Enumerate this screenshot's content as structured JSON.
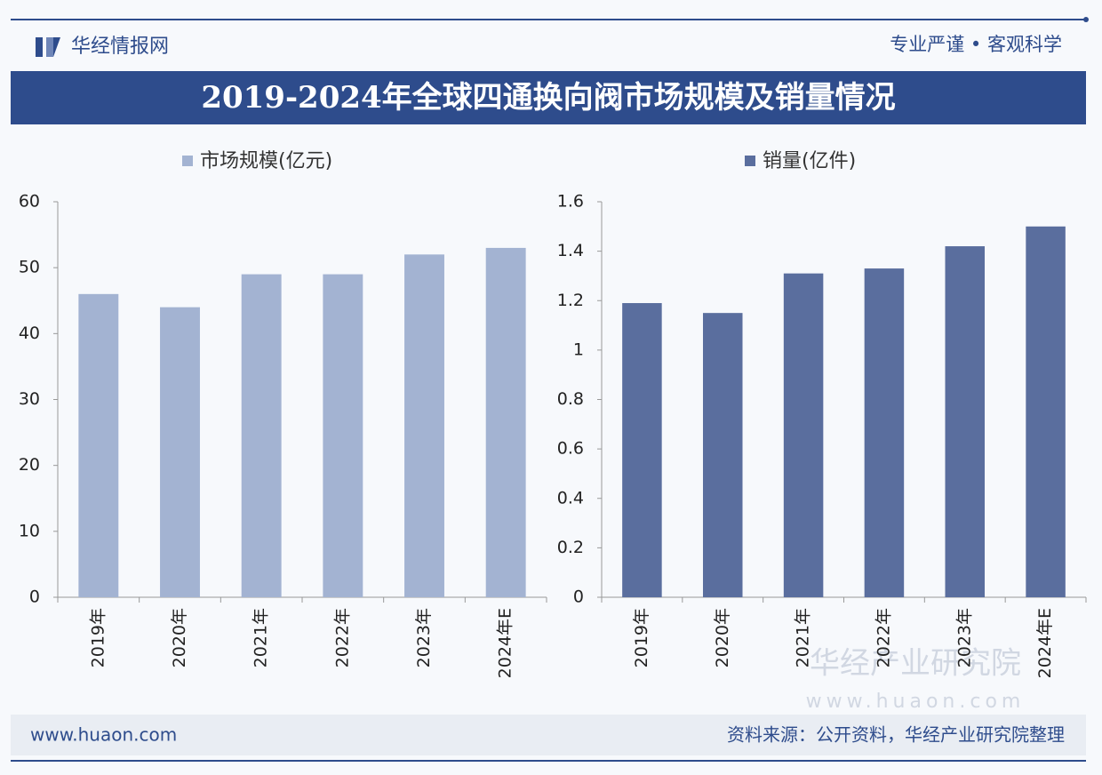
{
  "header": {
    "brand": "华经情报网",
    "slogan": "专业严谨 • 客观科学",
    "title": "2019-2024年全球四通换向阀市场规模及销量情况"
  },
  "chart_data": [
    {
      "type": "bar",
      "categories": [
        "2019年",
        "2020年",
        "2021年",
        "2022年",
        "2023年",
        "2024年E"
      ],
      "series": [
        {
          "name": "市场规模(亿元)",
          "color": "#a3b3d2",
          "values": [
            46,
            44,
            49,
            49,
            52,
            53
          ]
        }
      ],
      "ylim": [
        0,
        60
      ],
      "yticks": [
        0,
        10,
        20,
        30,
        40,
        50,
        60
      ]
    },
    {
      "type": "bar",
      "categories": [
        "2019年",
        "2020年",
        "2021年",
        "2022年",
        "2023年",
        "2024年E"
      ],
      "series": [
        {
          "name": "销量(亿件)",
          "color": "#5a6e9e",
          "values": [
            1.19,
            1.15,
            1.31,
            1.33,
            1.42,
            1.5
          ]
        }
      ],
      "ylim": [
        0,
        1.6
      ],
      "yticks": [
        0,
        0.2,
        0.4,
        0.6,
        0.8,
        1,
        1.2,
        1.4,
        1.6
      ]
    }
  ],
  "watermark": {
    "name": "华经产业研究院",
    "url": "www.huaon.com"
  },
  "footer": {
    "website": "www.huaon.com",
    "source": "资料来源：公开资料，华经产业研究院整理"
  }
}
